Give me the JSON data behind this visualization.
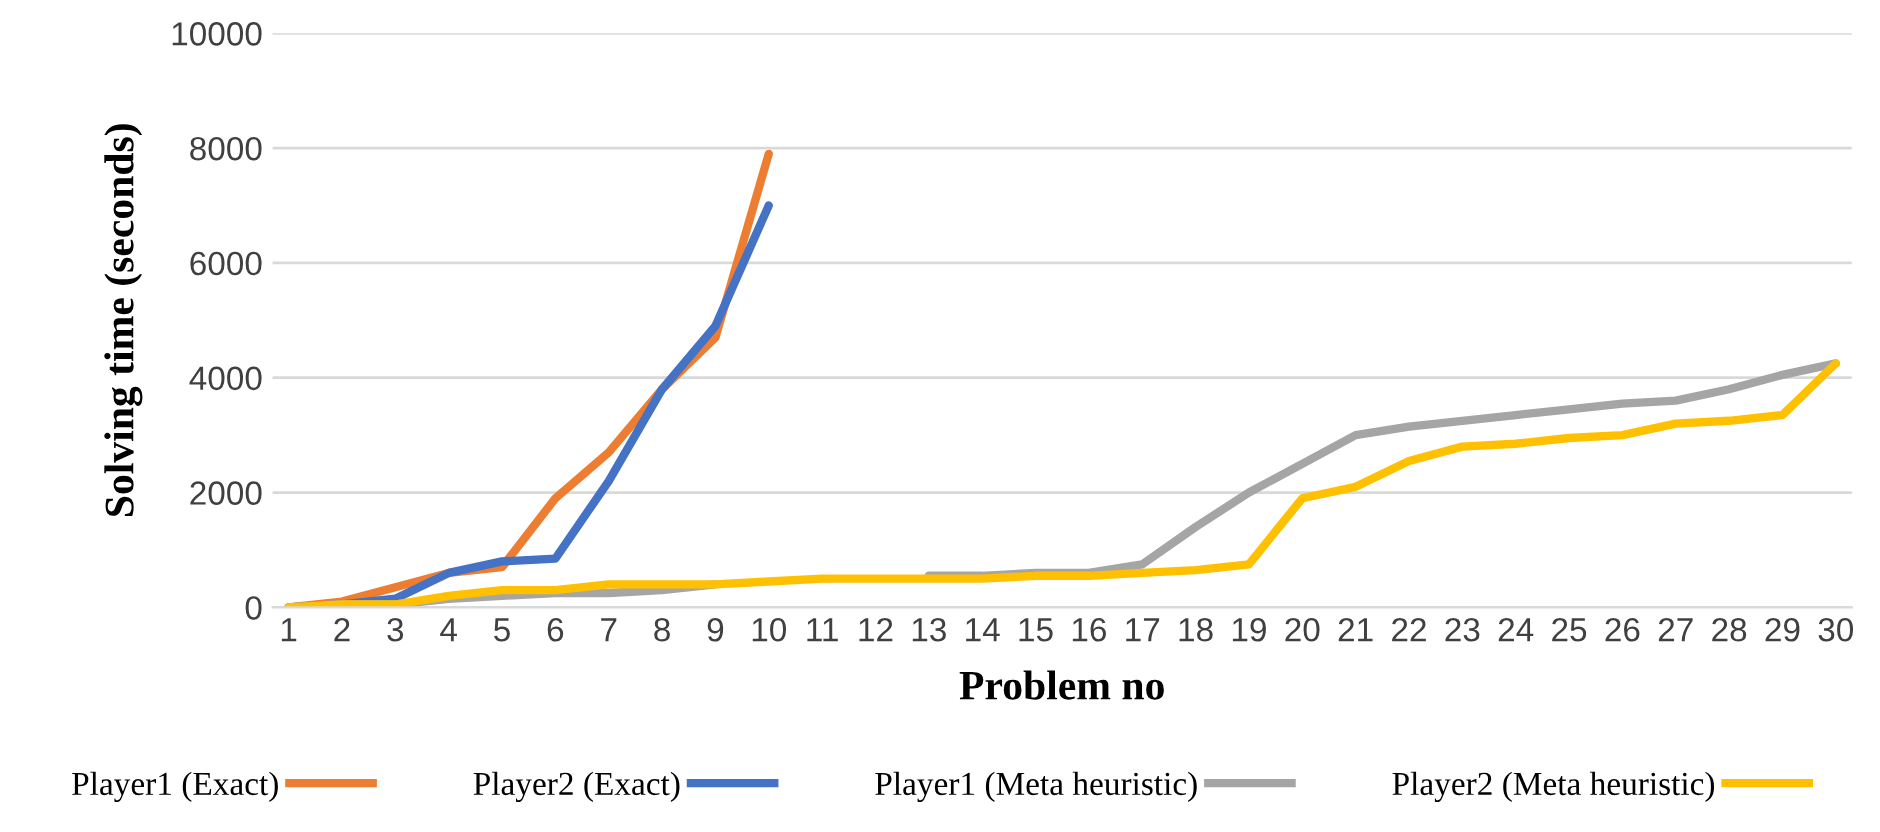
{
  "chart_data": {
    "type": "line",
    "xlabel": "Problem no",
    "ylabel": "Solving time (seconds)",
    "categories": [
      "1",
      "2",
      "3",
      "4",
      "5",
      "6",
      "7",
      "8",
      "9",
      "10",
      "11",
      "12",
      "13",
      "14",
      "15",
      "16",
      "17",
      "18",
      "19",
      "20",
      "21",
      "22",
      "23",
      "24",
      "25",
      "26",
      "27",
      "28",
      "29",
      "30"
    ],
    "ylim": [
      0,
      10000
    ],
    "yticks": [
      0,
      2000,
      4000,
      6000,
      8000,
      10000
    ],
    "grid": "y",
    "legend": "bottom",
    "marker": "none",
    "line_style": "solid",
    "series": [
      {
        "name": "Player1 (Exact)",
        "color": "#ed7d31",
        "values": [
          0,
          100,
          350,
          600,
          700,
          1900,
          2700,
          3800,
          4700,
          7900,
          null,
          null,
          null,
          null,
          null,
          null,
          null,
          null,
          null,
          null,
          null,
          null,
          null,
          null,
          null,
          null,
          null,
          null,
          null,
          null
        ]
      },
      {
        "name": "Player2 (Exact)",
        "color": "#4472c4",
        "values": [
          0,
          50,
          150,
          600,
          800,
          850,
          2200,
          3800,
          4900,
          7000,
          null,
          null,
          null,
          null,
          null,
          null,
          null,
          null,
          null,
          null,
          null,
          null,
          null,
          null,
          null,
          null,
          null,
          null,
          null,
          null
        ]
      },
      {
        "name": "Player1 (Meta heuristic)",
        "color": "#a5a5a5",
        "values": [
          0,
          50,
          50,
          150,
          200,
          250,
          250,
          300,
          400,
          null,
          null,
          null,
          550,
          550,
          600,
          600,
          750,
          1400,
          2000,
          2500,
          3000,
          3150,
          3250,
          3350,
          3450,
          3550,
          3600,
          3800,
          4050,
          4250
        ]
      },
      {
        "name": "Player2 (Meta heuristic)",
        "color": "#ffc000",
        "values": [
          0,
          50,
          50,
          200,
          300,
          300,
          400,
          400,
          400,
          450,
          500,
          500,
          500,
          500,
          550,
          550,
          600,
          650,
          750,
          1900,
          2100,
          2550,
          2800,
          2850,
          2950,
          3000,
          3200,
          3250,
          3350,
          4250
        ]
      }
    ]
  }
}
